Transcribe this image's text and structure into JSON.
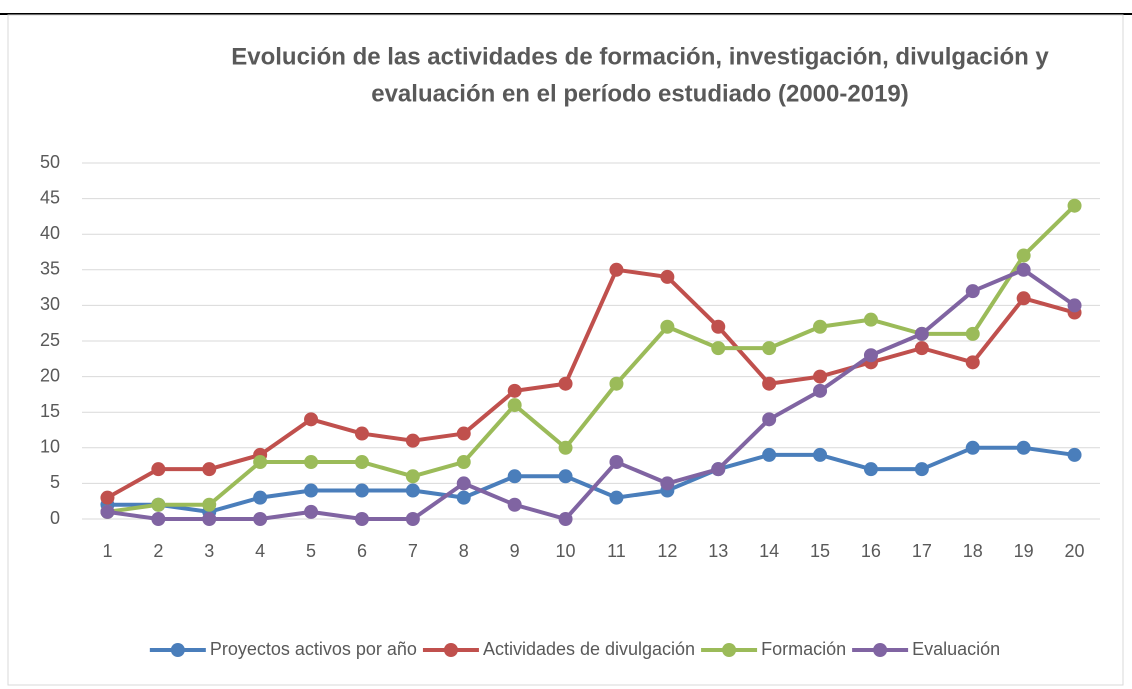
{
  "chart_data": {
    "type": "line",
    "title": [
      "Evolución de las actividades de formación, investigación, divulgación y",
      "evaluación en el período estudiado (2000-2019)"
    ],
    "categories": [
      "1",
      "2",
      "3",
      "4",
      "5",
      "6",
      "7",
      "8",
      "9",
      "10",
      "11",
      "12",
      "13",
      "14",
      "15",
      "16",
      "17",
      "18",
      "19",
      "20"
    ],
    "series": [
      {
        "name": "Proyectos activos por año",
        "color": "#4a7ebb",
        "values": [
          2,
          2,
          1,
          3,
          4,
          4,
          4,
          3,
          6,
          6,
          3,
          4,
          7,
          9,
          9,
          7,
          7,
          10,
          10,
          9
        ]
      },
      {
        "name": "Actividades de divulgación",
        "color": "#c0504d",
        "values": [
          3,
          7,
          7,
          9,
          14,
          12,
          11,
          12,
          18,
          19,
          35,
          34,
          27,
          19,
          20,
          22,
          24,
          22,
          31,
          29
        ]
      },
      {
        "name": "Formación",
        "color": "#9bbb59",
        "values": [
          1,
          2,
          2,
          8,
          8,
          8,
          6,
          8,
          16,
          10,
          19,
          27,
          24,
          24,
          27,
          28,
          26,
          26,
          37,
          44
        ]
      },
      {
        "name": "Evaluación",
        "color": "#8064a2",
        "values": [
          1,
          0,
          0,
          0,
          1,
          0,
          0,
          5,
          2,
          0,
          8,
          5,
          7,
          14,
          18,
          23,
          26,
          32,
          35,
          30
        ]
      }
    ],
    "ylim": [
      0,
      50
    ],
    "yticks": [
      0,
      5,
      10,
      15,
      20,
      25,
      30,
      35,
      40,
      45,
      50
    ],
    "grid": true,
    "legend": "bottom"
  }
}
